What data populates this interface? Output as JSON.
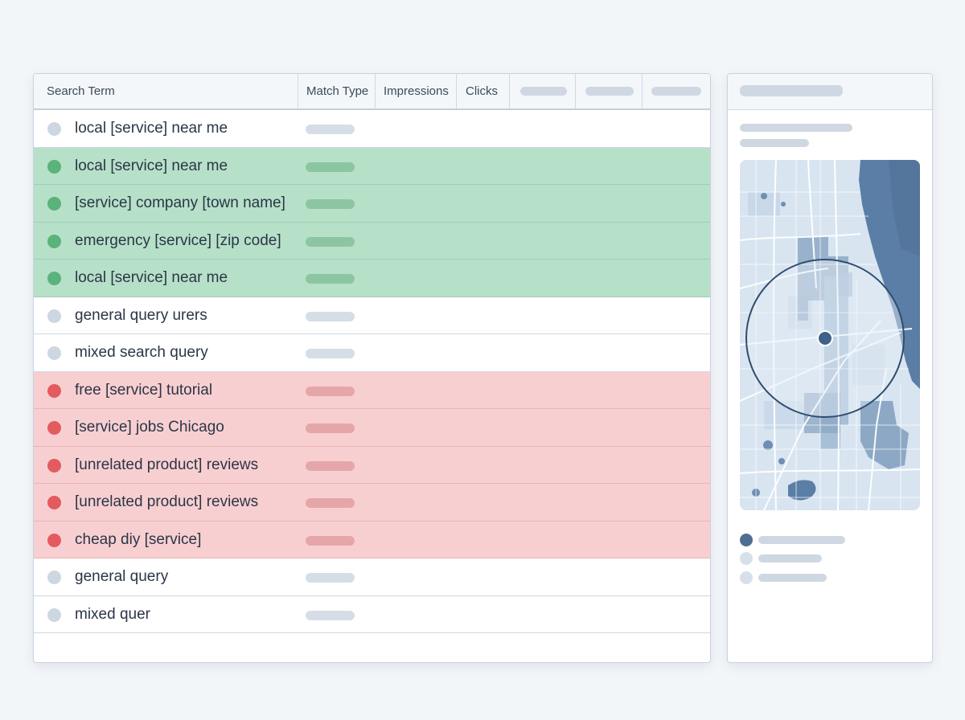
{
  "table": {
    "headers": {
      "search_term": "Search Term",
      "match_type": "Match Type",
      "impressions": "Impressions",
      "clicks": "Clicks"
    },
    "rows": [
      {
        "term": "local [service] near me",
        "status": "neutral"
      },
      {
        "term": "local [service] near me",
        "status": "positive"
      },
      {
        "term": "[service] company [town name]",
        "status": "positive"
      },
      {
        "term": "emergency [service] [zip code]",
        "status": "positive"
      },
      {
        "term": "local [service] near me",
        "status": "positive"
      },
      {
        "term": "general query urers",
        "status": "neutral"
      },
      {
        "term": "mixed search query",
        "status": "neutral"
      },
      {
        "term": "free [service] tutorial",
        "status": "negative"
      },
      {
        "term": "[service] jobs Chicago",
        "status": "negative"
      },
      {
        "term": "[unrelated product] reviews",
        "status": "negative"
      },
      {
        "term": "[unrelated product] reviews",
        "status": "negative"
      },
      {
        "term": "cheap diy [service]",
        "status": "negative"
      },
      {
        "term": "general query",
        "status": "neutral"
      },
      {
        "term": "mixed quer",
        "status": "neutral"
      }
    ]
  },
  "map": {
    "icons": [
      "map-icon",
      "location-pin-icon",
      "radius-circle-icon"
    ],
    "legend": [
      {
        "status": "active",
        "color": "#4f6f92"
      },
      {
        "status": "inactive",
        "color": "#d7e0ea"
      },
      {
        "status": "inactive",
        "color": "#d7e0ea"
      }
    ]
  },
  "colors": {
    "positive_row": "#b7e0c8",
    "positive_dot": "#5bb27a",
    "negative_row": "#f8cfd1",
    "negative_dot": "#e45b5f",
    "neutral_dot": "#cdd7e1",
    "water": "#5a7ea6",
    "land": "#d8e4f0"
  }
}
